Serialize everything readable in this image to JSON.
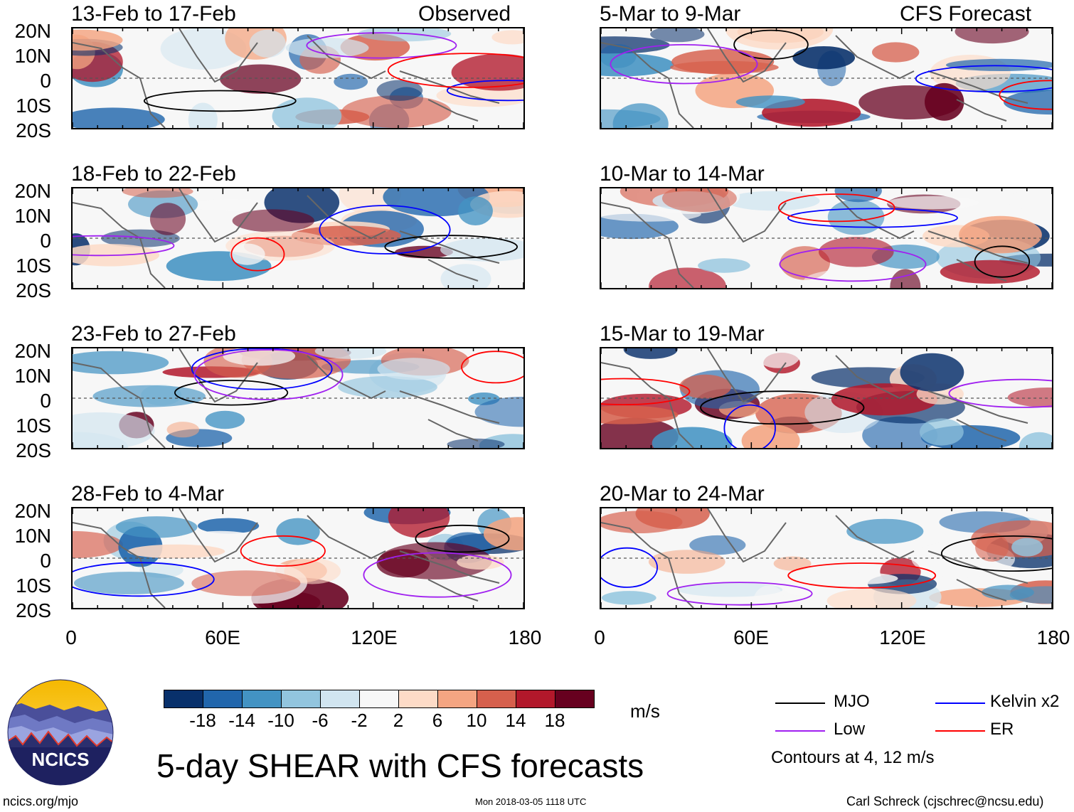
{
  "chart_data": {
    "type": "heatmap",
    "title": "5-day SHEAR with CFS forecasts",
    "variable": "SHEAR",
    "units": "m/s",
    "x_ticks": [
      "0",
      "60E",
      "120E",
      "180"
    ],
    "y_ticks": [
      "20N",
      "10N",
      "0",
      "10S",
      "20S"
    ],
    "xlim": [
      0,
      180
    ],
    "ylim": [
      -20,
      20
    ],
    "colorbar_ticks": [
      "-18",
      "-14",
      "-10",
      "-6",
      "-2",
      "2",
      "6",
      "10",
      "14",
      "18"
    ],
    "colorbar_colors": [
      "#08306b",
      "#2166ac",
      "#4393c3",
      "#92c5de",
      "#d1e5f0",
      "#f7f7f7",
      "#fddbc7",
      "#f4a582",
      "#d6604d",
      "#b2182b",
      "#67001f"
    ],
    "contour_levels_text": "Contours at 4, 12 m/s",
    "legend": [
      {
        "name": "MJO",
        "color": "#000000"
      },
      {
        "name": "Kelvin x2",
        "color": "#0000ff"
      },
      {
        "name": "Low",
        "color": "#a020f0"
      },
      {
        "name": "ER",
        "color": "#ff0000"
      }
    ],
    "observed_label": "Observed",
    "forecast_label": "CFS Forecast",
    "panels": [
      {
        "title": "13-Feb to 17-Feb",
        "group": "observed"
      },
      {
        "title": "18-Feb to 22-Feb",
        "group": "observed"
      },
      {
        "title": "23-Feb to 27-Feb",
        "group": "observed"
      },
      {
        "title": "28-Feb to 4-Mar",
        "group": "observed"
      },
      {
        "title": "5-Mar to 9-Mar",
        "group": "forecast"
      },
      {
        "title": "10-Mar to 14-Mar",
        "group": "forecast"
      },
      {
        "title": "15-Mar to 19-Mar",
        "group": "forecast"
      },
      {
        "title": "20-Mar to 24-Mar",
        "group": "forecast"
      }
    ]
  },
  "logo": {
    "text": "NCICS"
  },
  "footer": {
    "left": "ncics.org/mjo",
    "center": "Mon 2018-03-05 1118 UTC",
    "right": "Carl Schreck (cjschrec@ncsu.edu)"
  }
}
